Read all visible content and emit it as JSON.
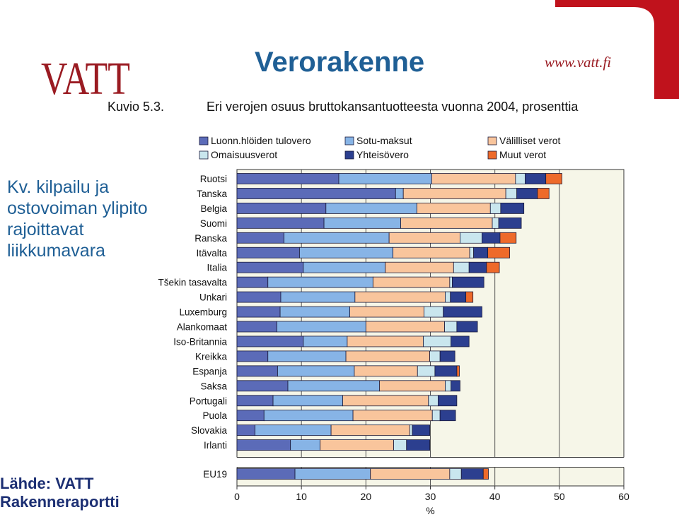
{
  "header": {
    "logo_text": "VATT",
    "title": "Verorakenne",
    "website": "www.vatt.fi",
    "figure_label": "Kuvio 5.3.",
    "figure_title": "Eri verojen osuus bruttokansantuotteesta vuonna 2004, prosenttia"
  },
  "side_note": {
    "lines": [
      "Kv. kilpailu ja",
      "ostovoiman ylipito",
      "rajoittavat",
      "liikkumavara"
    ]
  },
  "source": {
    "lines": [
      "Lähde: VATT",
      "Rakenneraportti"
    ]
  },
  "colors": {
    "title": "#1f5f95",
    "brand_red": "#9a1b22",
    "plot_background": "#f6f6e8"
  },
  "chart_data": {
    "type": "bar",
    "orientation": "horizontal",
    "stacked": true,
    "title": "Eri verojen osuus bruttokansantuotteesta vuonna 2004, prosenttia",
    "xlabel": "%",
    "xlim": [
      0,
      60
    ],
    "xticks": [
      0,
      10,
      20,
      30,
      40,
      50,
      60
    ],
    "grid": "vertical",
    "legend_position": "top",
    "categories": [
      "Ruotsi",
      "Tanska",
      "Belgia",
      "Suomi",
      "Ranska",
      "Itävalta",
      "Italia",
      "Tšekin tasavalta",
      "Unkari",
      "Luxemburg",
      "Alankomaat",
      "Iso-Britannia",
      "Kreikka",
      "Espanja",
      "Saksa",
      "Portugali",
      "Puola",
      "Slovakia",
      "Irlanti",
      "EU19"
    ],
    "series": [
      {
        "name": "Luonn.hlöiden tulovero",
        "color": "#5b6bb8",
        "values": [
          15.8,
          24.6,
          13.8,
          13.5,
          7.3,
          9.7,
          10.3,
          4.8,
          6.8,
          6.7,
          6.2,
          10.3,
          4.8,
          6.3,
          7.9,
          5.6,
          4.2,
          2.8,
          8.3,
          9.0
        ]
      },
      {
        "name": "Sotu-maksut",
        "color": "#87b4e6",
        "values": [
          14.4,
          1.2,
          14.1,
          11.9,
          16.3,
          14.5,
          12.7,
          16.3,
          11.5,
          10.8,
          13.8,
          6.8,
          12.1,
          11.9,
          14.2,
          10.8,
          13.8,
          11.8,
          4.6,
          11.7
        ]
      },
      {
        "name": "Välilliset verot",
        "color": "#f9c59c",
        "values": [
          13.0,
          15.9,
          11.4,
          14.2,
          11.0,
          11.9,
          10.6,
          11.9,
          14.0,
          11.5,
          12.2,
          11.8,
          13.0,
          9.8,
          10.2,
          13.3,
          12.3,
          12.2,
          11.4,
          12.3
        ]
      },
      {
        "name": "Omaisuusverot",
        "color": "#c9e6ee",
        "values": [
          1.5,
          1.7,
          1.6,
          1.0,
          3.4,
          0.6,
          2.4,
          0.4,
          0.8,
          3.0,
          1.9,
          4.3,
          1.6,
          2.7,
          0.9,
          1.5,
          1.2,
          0.4,
          2.0,
          1.8
        ]
      },
      {
        "name": "Yhteisövero",
        "color": "#2c3f8f",
        "values": [
          3.2,
          3.2,
          3.6,
          3.5,
          2.8,
          2.2,
          2.7,
          4.9,
          2.4,
          6.0,
          3.2,
          2.8,
          2.3,
          3.4,
          1.4,
          2.9,
          2.4,
          2.7,
          3.6,
          3.4
        ]
      },
      {
        "name": "Muut verot",
        "color": "#ee6a2a",
        "values": [
          2.5,
          1.8,
          0,
          0,
          2.5,
          3.4,
          2.0,
          0,
          1.1,
          0,
          0,
          0,
          0,
          0.4,
          0,
          0,
          0,
          0,
          0,
          0.8
        ]
      }
    ]
  }
}
